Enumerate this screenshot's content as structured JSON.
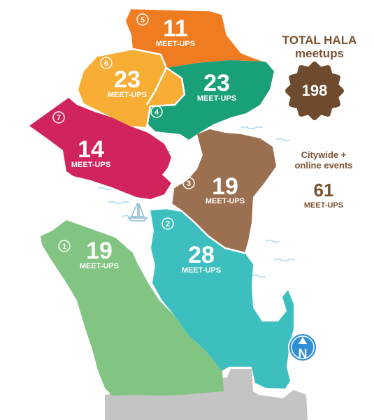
{
  "colors": {
    "d1": "#82c482",
    "d2": "#3ebfbf",
    "d3": "#9b7050",
    "d4": "#1aa079",
    "d5": "#f07c22",
    "d6": "#f8ae35",
    "d7": "#d1245c",
    "gray": "#c4c4c4",
    "brown_text": "#7a5232",
    "badge": "#6e4a2e",
    "north_badge": "#2f8fd4"
  },
  "districts": [
    {
      "id": "1",
      "count": "19",
      "label": "MEET-UPS"
    },
    {
      "id": "2",
      "count": "28",
      "label": "MEET-UPS"
    },
    {
      "id": "3",
      "count": "19",
      "label": "MEET-UPS"
    },
    {
      "id": "4",
      "count": "23",
      "label": "MEET-UPS"
    },
    {
      "id": "5",
      "count": "11",
      "label": "MEET-UPS"
    },
    {
      "id": "6",
      "count": "23",
      "label": "MEET-UPS"
    },
    {
      "id": "7",
      "count": "14",
      "label": "MEET-UPS"
    }
  ],
  "total": {
    "title": "TOTAL HALA meetups",
    "value": "198"
  },
  "citywide": {
    "title": "Citywide + online events",
    "count": "61",
    "label": "MEET-UPS"
  },
  "compass": {
    "letter": "N",
    "icon": "north-arrow-icon"
  }
}
